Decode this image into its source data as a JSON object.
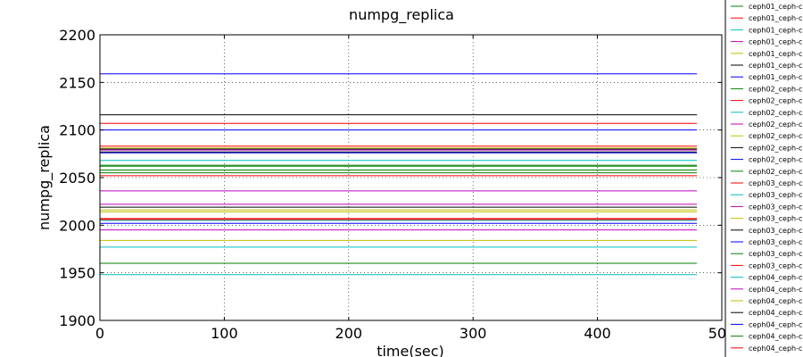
{
  "chart_data": {
    "type": "line",
    "title": "numpg_replica",
    "xlabel": "time(sec)",
    "ylabel": "numpg_replica",
    "xlim": [
      0,
      500
    ],
    "ylim": [
      1900,
      2200
    ],
    "xticks": [
      0,
      100,
      200,
      300,
      400,
      500
    ],
    "yticks": [
      1900,
      1950,
      2000,
      2050,
      2100,
      2150,
      2200
    ],
    "grid": true,
    "legend_position": "right, clipped at edge",
    "x_range": [
      0,
      480
    ],
    "series": [
      {
        "name": "ceph01_ceph-c",
        "color": "#008000",
        "value": 2063
      },
      {
        "name": "ceph01_ceph-c",
        "color": "#ff0000",
        "value": 2107
      },
      {
        "name": "ceph01_ceph-c",
        "color": "#00bfbf",
        "value": 2068
      },
      {
        "name": "ceph01_ceph-c",
        "color": "#bf00bf",
        "value": 2079
      },
      {
        "name": "ceph01_ceph-c",
        "color": "#bfbf00",
        "value": 2016
      },
      {
        "name": "ceph01_ceph-c",
        "color": "#000000",
        "value": 2116
      },
      {
        "name": "ceph01_ceph-c",
        "color": "#0000ff",
        "value": 2159
      },
      {
        "name": "ceph02_ceph-c",
        "color": "#008000",
        "value": 2058
      },
      {
        "name": "ceph02_ceph-c",
        "color": "#ff0000",
        "value": 2083
      },
      {
        "name": "ceph02_ceph-c",
        "color": "#00bfbf",
        "value": 2005
      },
      {
        "name": "ceph02_ceph-c",
        "color": "#bf00bf",
        "value": 2036
      },
      {
        "name": "ceph02_ceph-c",
        "color": "#bfbf00",
        "value": 2081
      },
      {
        "name": "ceph02_ceph-c",
        "color": "#000000",
        "value": 2077
      },
      {
        "name": "ceph02_ceph-c",
        "color": "#0000ff",
        "value": 2100
      },
      {
        "name": "ceph02_ceph-c",
        "color": "#008000",
        "value": 2055
      },
      {
        "name": "ceph03_ceph-c",
        "color": "#ff0000",
        "value": 2052
      },
      {
        "name": "ceph03_ceph-c",
        "color": "#00bfbf",
        "value": 1977
      },
      {
        "name": "ceph03_ceph-c",
        "color": "#bf00bf",
        "value": 1995
      },
      {
        "name": "ceph03_ceph-c",
        "color": "#bfbf00",
        "value": 1984
      },
      {
        "name": "ceph03_ceph-c",
        "color": "#000000",
        "value": 2019
      },
      {
        "name": "ceph03_ceph-c",
        "color": "#0000ff",
        "value": 2076
      },
      {
        "name": "ceph03_ceph-c",
        "color": "#008000",
        "value": 1960
      },
      {
        "name": "ceph03_ceph-c",
        "color": "#ff0000",
        "value": 2007
      },
      {
        "name": "ceph04_ceph-c",
        "color": "#00bfbf",
        "value": 1948
      },
      {
        "name": "ceph04_ceph-c",
        "color": "#bf00bf",
        "value": 2022
      },
      {
        "name": "ceph04_ceph-c",
        "color": "#bfbf00",
        "value": 2014
      },
      {
        "name": "ceph04_ceph-c",
        "color": "#000000",
        "value": 2080
      },
      {
        "name": "ceph04_ceph-c",
        "color": "#0000ff",
        "value": 2002
      },
      {
        "name": "ceph04_ceph-c",
        "color": "#008000",
        "value": 2062
      },
      {
        "name": "ceph04_ceph-c",
        "color": "#ff0000",
        "value": 2006
      }
    ]
  }
}
